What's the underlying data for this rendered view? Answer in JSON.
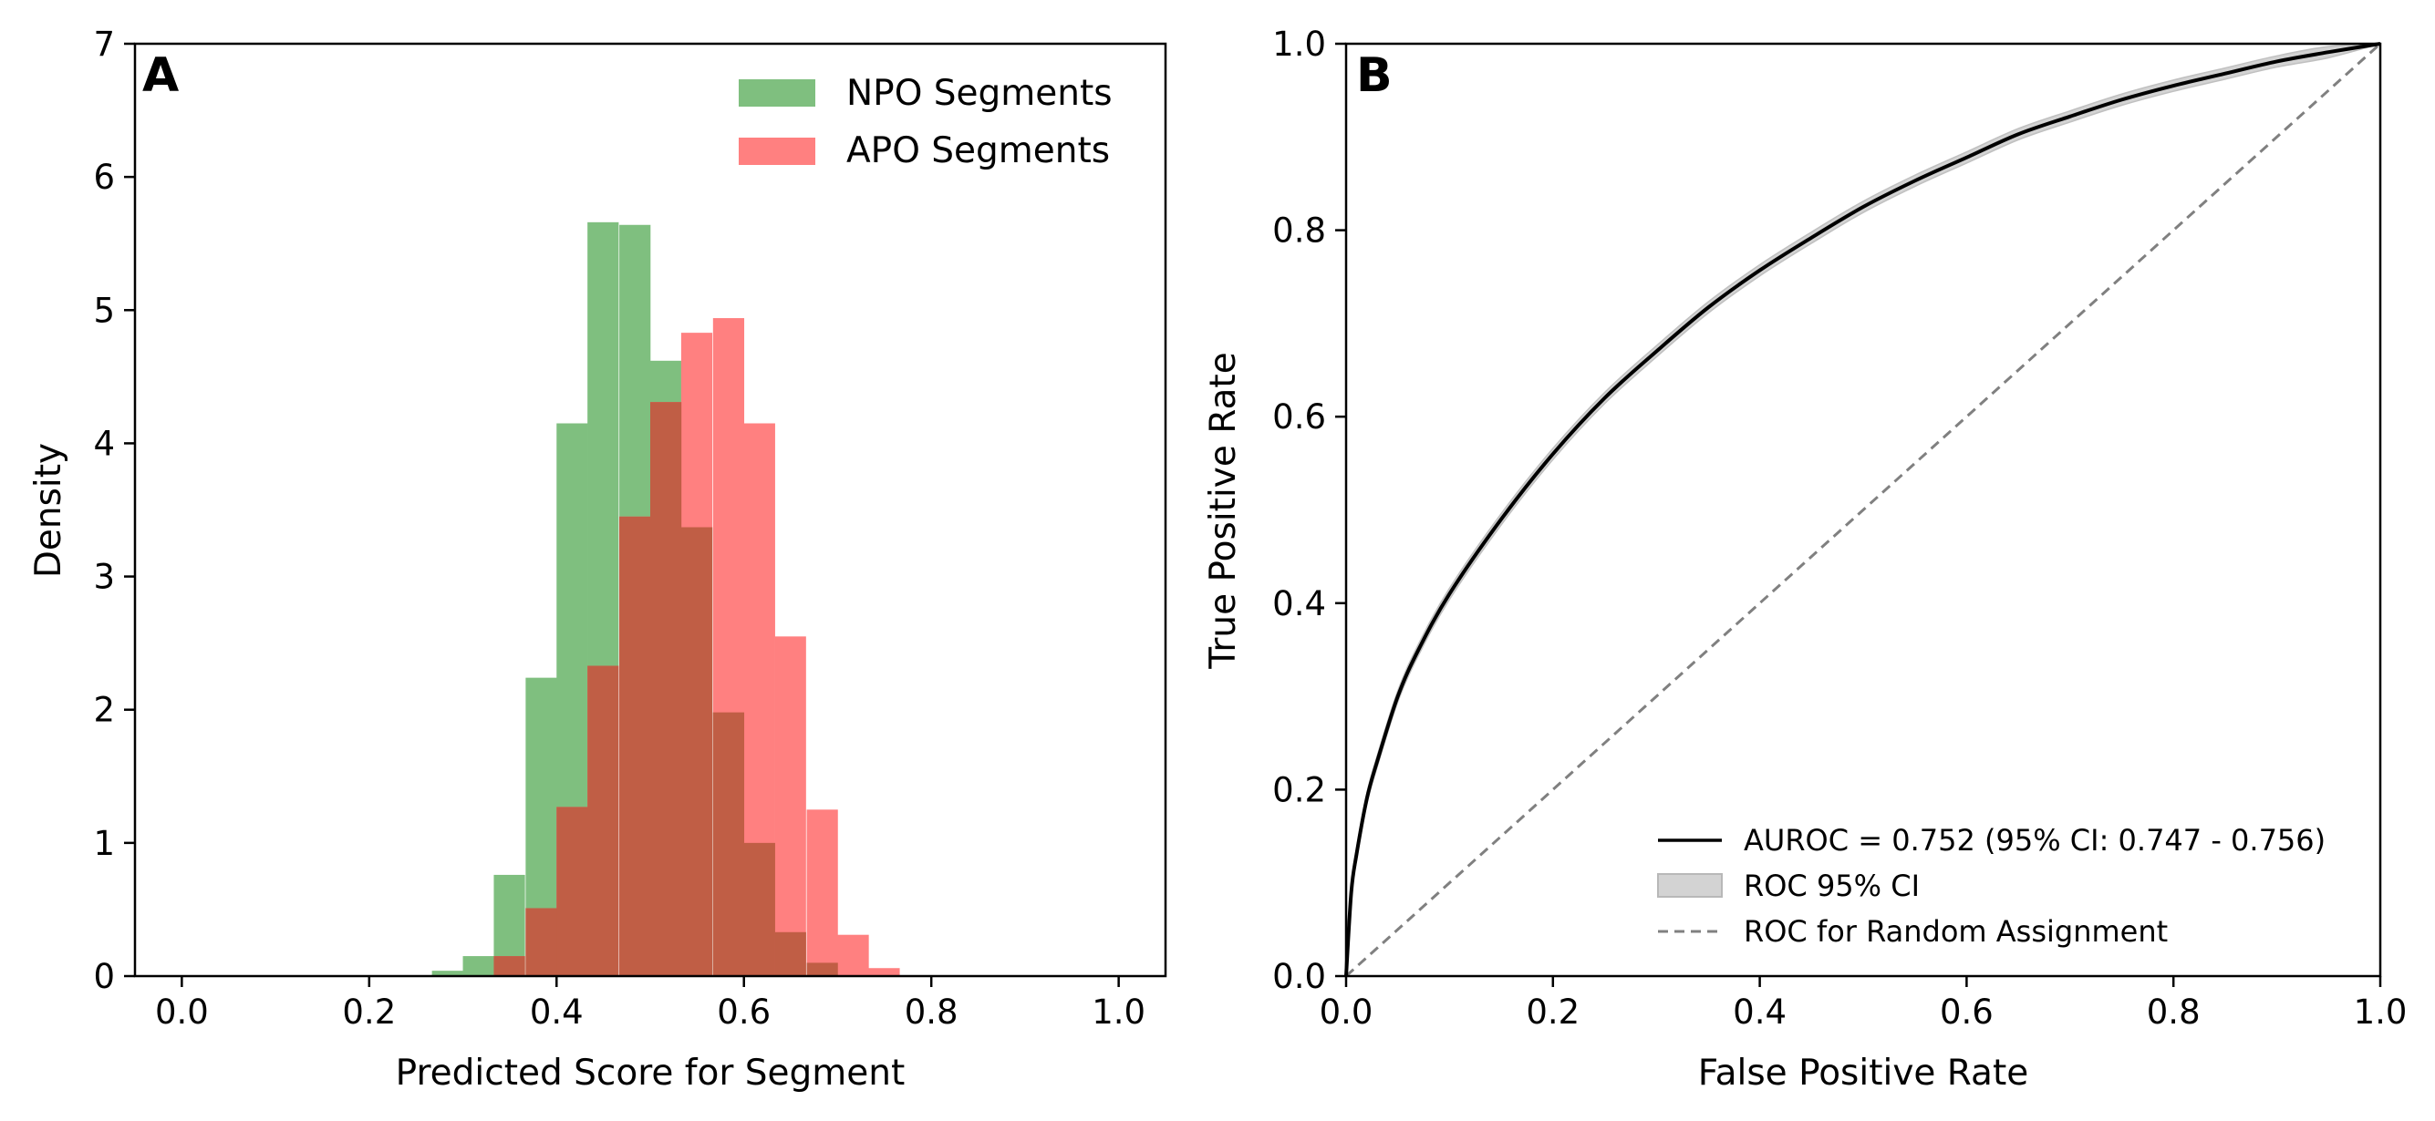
{
  "chart_data": [
    {
      "panel": "A",
      "type": "histogram",
      "xlabel": "Predicted Score for Segment",
      "ylabel": "Density",
      "xlim": [
        -0.05,
        1.05
      ],
      "ylim": [
        0,
        7
      ],
      "xticks": [
        "0.0",
        "0.2",
        "0.4",
        "0.6",
        "0.8",
        "1.0"
      ],
      "yticks": [
        "0",
        "1",
        "2",
        "3",
        "4",
        "5",
        "6",
        "7"
      ],
      "bin_width": 0.0333,
      "legend_position": "upper right",
      "series": [
        {
          "name": "NPO Segments",
          "color": "#7fbf7f",
          "bins": [
            {
              "x0": 0.267,
              "h": 0.04
            },
            {
              "x0": 0.3,
              "h": 0.15
            },
            {
              "x0": 0.333,
              "h": 0.76
            },
            {
              "x0": 0.367,
              "h": 2.24
            },
            {
              "x0": 0.4,
              "h": 4.15
            },
            {
              "x0": 0.433,
              "h": 5.66
            },
            {
              "x0": 0.467,
              "h": 5.64
            },
            {
              "x0": 0.5,
              "h": 4.62
            },
            {
              "x0": 0.533,
              "h": 3.37
            },
            {
              "x0": 0.567,
              "h": 1.98
            },
            {
              "x0": 0.6,
              "h": 1.0
            },
            {
              "x0": 0.633,
              "h": 0.33
            },
            {
              "x0": 0.667,
              "h": 0.1
            }
          ]
        },
        {
          "name": "APO Segments",
          "color": "#ff8080",
          "bins": [
            {
              "x0": 0.333,
              "h": 0.15
            },
            {
              "x0": 0.367,
              "h": 0.51
            },
            {
              "x0": 0.4,
              "h": 1.27
            },
            {
              "x0": 0.433,
              "h": 2.33
            },
            {
              "x0": 0.467,
              "h": 3.45
            },
            {
              "x0": 0.5,
              "h": 4.31
            },
            {
              "x0": 0.533,
              "h": 4.83
            },
            {
              "x0": 0.567,
              "h": 4.94
            },
            {
              "x0": 0.6,
              "h": 4.15
            },
            {
              "x0": 0.633,
              "h": 2.55
            },
            {
              "x0": 0.667,
              "h": 1.25
            },
            {
              "x0": 0.7,
              "h": 0.31
            },
            {
              "x0": 0.733,
              "h": 0.06
            }
          ]
        }
      ],
      "overlap_color": "#c05e45"
    },
    {
      "panel": "B",
      "type": "line",
      "xlabel": "False Positive Rate",
      "ylabel": "True Positive Rate",
      "xlim": [
        0,
        1
      ],
      "ylim": [
        0,
        1
      ],
      "xticks": [
        "0.0",
        "0.2",
        "0.4",
        "0.6",
        "0.8",
        "1.0"
      ],
      "yticks": [
        "0.0",
        "0.2",
        "0.4",
        "0.6",
        "0.8",
        "1.0"
      ],
      "legend_position": "lower right",
      "series": [
        {
          "name": "AUROC = 0.752 (95% CI: 0.747 - 0.756)",
          "color": "#000000",
          "style": "solid",
          "x": [
            0,
            0.005,
            0.01,
            0.02,
            0.03,
            0.05,
            0.07,
            0.1,
            0.15,
            0.2,
            0.25,
            0.3,
            0.35,
            0.4,
            0.45,
            0.5,
            0.55,
            0.6,
            0.65,
            0.7,
            0.75,
            0.8,
            0.85,
            0.9,
            0.95,
            1.0
          ],
          "y": [
            0,
            0.09,
            0.13,
            0.19,
            0.23,
            0.3,
            0.35,
            0.41,
            0.49,
            0.56,
            0.62,
            0.67,
            0.717,
            0.757,
            0.792,
            0.825,
            0.853,
            0.878,
            0.903,
            0.922,
            0.94,
            0.955,
            0.968,
            0.981,
            0.991,
            1.0
          ]
        },
        {
          "name": "ROC 95% CI",
          "color": "#d3d3d3",
          "style": "band",
          "halfwidth": 0.006
        },
        {
          "name": "ROC for Random Assignment",
          "color": "#808080",
          "style": "dashed",
          "x": [
            0,
            1
          ],
          "y": [
            0,
            1
          ]
        }
      ]
    }
  ],
  "panels": {
    "a": {
      "label": "A",
      "xlabel": "Predicted Score for Segment",
      "ylabel": "Density"
    },
    "b": {
      "label": "B",
      "xlabel": "False Positive Rate",
      "ylabel": "True Positive Rate"
    }
  },
  "legend_a": [
    "NPO Segments",
    "APO Segments"
  ],
  "legend_b": [
    "AUROC = 0.752 (95% CI: 0.747 - 0.756)",
    "ROC 95% CI",
    "ROC for Random Assignment"
  ]
}
